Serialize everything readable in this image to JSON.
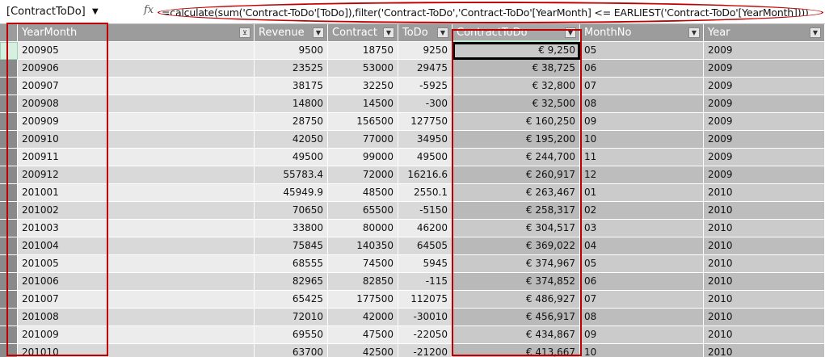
{
  "formula_bar": {
    "name_box": "[ContractToDo]",
    "fx_label": "fx",
    "formula": "=calculate(sum('Contract-ToDo'[ToDo]),filter('Contract-ToDo','Contract-ToDo'[YearMonth] <= EARLIEST('Contract-ToDo'[YearMonth])))"
  },
  "table": {
    "columns": [
      "YearMonth",
      "Revenue",
      "Contract",
      "ToDo",
      "ContractToDo",
      "MonthNo",
      "Year"
    ],
    "rows": [
      [
        "200905",
        "9500",
        "18750",
        "9250",
        "€ 9,250",
        "05",
        "2009"
      ],
      [
        "200906",
        "23525",
        "53000",
        "29475",
        "€ 38,725",
        "06",
        "2009"
      ],
      [
        "200907",
        "38175",
        "32250",
        "-5925",
        "€ 32,800",
        "07",
        "2009"
      ],
      [
        "200908",
        "14800",
        "14500",
        "-300",
        "€ 32,500",
        "08",
        "2009"
      ],
      [
        "200909",
        "28750",
        "156500",
        "127750",
        "€ 160,250",
        "09",
        "2009"
      ],
      [
        "200910",
        "42050",
        "77000",
        "34950",
        "€ 195,200",
        "10",
        "2009"
      ],
      [
        "200911",
        "49500",
        "99000",
        "49500",
        "€ 244,700",
        "11",
        "2009"
      ],
      [
        "200912",
        "55783.4",
        "72000",
        "16216.6",
        "€ 260,917",
        "12",
        "2009"
      ],
      [
        "201001",
        "45949.9",
        "48500",
        "2550.1",
        "€ 263,467",
        "01",
        "2010"
      ],
      [
        "201002",
        "70650",
        "65500",
        "-5150",
        "€ 258,317",
        "02",
        "2010"
      ],
      [
        "201003",
        "33800",
        "80000",
        "46200",
        "€ 304,517",
        "03",
        "2010"
      ],
      [
        "201004",
        "75845",
        "140350",
        "64505",
        "€ 369,022",
        "04",
        "2010"
      ],
      [
        "201005",
        "68555",
        "74500",
        "5945",
        "€ 374,967",
        "05",
        "2010"
      ],
      [
        "201006",
        "82965",
        "82850",
        "-115",
        "€ 374,852",
        "06",
        "2010"
      ],
      [
        "201007",
        "65425",
        "177500",
        "112075",
        "€ 486,927",
        "07",
        "2010"
      ],
      [
        "201008",
        "72010",
        "42000",
        "-30010",
        "€ 456,917",
        "08",
        "2010"
      ],
      [
        "201009",
        "69550",
        "47500",
        "-22050",
        "€ 434,867",
        "09",
        "2010"
      ],
      [
        "201010",
        "63700",
        "42500",
        "-21200",
        "€ 413,667",
        "10",
        "2010"
      ]
    ]
  }
}
